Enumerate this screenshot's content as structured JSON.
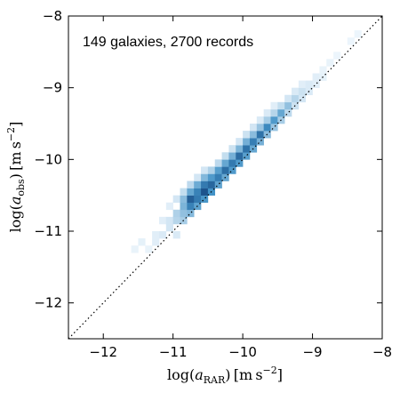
{
  "chart_data": {
    "type": "heatmap",
    "annotation": "149 galaxies, 2700 records",
    "xlim": [
      -12.5,
      -8
    ],
    "ylim": [
      -12.5,
      -8
    ],
    "xticks": [
      -12,
      -11,
      -10,
      -9,
      -8
    ],
    "yticks": [
      -12,
      -11,
      -10,
      -9,
      -8
    ],
    "xtick_labels": [
      "−12",
      "−11",
      "−10",
      "−9",
      "−8"
    ],
    "ytick_labels": [
      "−12",
      "−11",
      "−10",
      "−9",
      "−8"
    ],
    "xlabel": {
      "prefix": "log(",
      "var": "a",
      "sub": "RAR",
      "suffix": ") [m s",
      "sup": "−2",
      "end": "]"
    },
    "ylabel": {
      "prefix": "log(",
      "var": "a",
      "sub": "obs",
      "suffix": ") [m s",
      "sup": "−2",
      "end": "]"
    },
    "reference_line": {
      "style": "dotted",
      "from": [
        -12.5,
        -12.5
      ],
      "to": [
        -8,
        -8
      ]
    },
    "bin_size": 0.1,
    "color_low": "#f7fbff",
    "color_high": "#08306b",
    "cells": [
      [
        -11.6,
        -11.3,
        0.04
      ],
      [
        -11.5,
        -11.2,
        0.05
      ],
      [
        -11.4,
        -11.3,
        0.04
      ],
      [
        -11.3,
        -11.2,
        0.06
      ],
      [
        -11.3,
        -11.1,
        0.06
      ],
      [
        -11.2,
        -11.1,
        0.08
      ],
      [
        -11.2,
        -10.9,
        0.06
      ],
      [
        -11.1,
        -11.0,
        0.1
      ],
      [
        -11.1,
        -10.9,
        0.1
      ],
      [
        -11.1,
        -10.7,
        0.06
      ],
      [
        -11.0,
        -11.1,
        0.08
      ],
      [
        -11.0,
        -10.9,
        0.18
      ],
      [
        -11.0,
        -10.8,
        0.2
      ],
      [
        -11.0,
        -10.6,
        0.1
      ],
      [
        -10.9,
        -10.9,
        0.22
      ],
      [
        -10.9,
        -10.8,
        0.28
      ],
      [
        -10.9,
        -10.7,
        0.34
      ],
      [
        -10.9,
        -10.6,
        0.3
      ],
      [
        -10.9,
        -10.5,
        0.14
      ],
      [
        -10.8,
        -10.8,
        0.32
      ],
      [
        -10.8,
        -10.7,
        0.58
      ],
      [
        -10.8,
        -10.6,
        0.76
      ],
      [
        -10.8,
        -10.5,
        0.4
      ],
      [
        -10.8,
        -10.4,
        0.16
      ],
      [
        -10.7,
        -10.7,
        0.42
      ],
      [
        -10.7,
        -10.6,
        0.62
      ],
      [
        -10.7,
        -10.5,
        0.58
      ],
      [
        -10.7,
        -10.4,
        0.38
      ],
      [
        -10.7,
        -10.3,
        0.1
      ],
      [
        -10.6,
        -10.6,
        0.48
      ],
      [
        -10.6,
        -10.5,
        0.82
      ],
      [
        -10.6,
        -10.4,
        0.62
      ],
      [
        -10.6,
        -10.3,
        0.32
      ],
      [
        -10.6,
        -10.2,
        0.1
      ],
      [
        -10.5,
        -10.5,
        0.5
      ],
      [
        -10.5,
        -10.4,
        0.72
      ],
      [
        -10.5,
        -10.3,
        0.46
      ],
      [
        -10.5,
        -10.2,
        0.2
      ],
      [
        -10.4,
        -10.4,
        0.42
      ],
      [
        -10.4,
        -10.3,
        0.6
      ],
      [
        -10.4,
        -10.2,
        0.44
      ],
      [
        -10.4,
        -10.1,
        0.16
      ],
      [
        -10.3,
        -10.3,
        0.4
      ],
      [
        -10.3,
        -10.2,
        0.68
      ],
      [
        -10.3,
        -10.1,
        0.4
      ],
      [
        -10.3,
        -10.0,
        0.14
      ],
      [
        -10.2,
        -10.2,
        0.46
      ],
      [
        -10.2,
        -10.1,
        0.62
      ],
      [
        -10.2,
        -10.0,
        0.36
      ],
      [
        -10.2,
        -9.9,
        0.12
      ],
      [
        -10.1,
        -10.1,
        0.46
      ],
      [
        -10.1,
        -10.0,
        0.7
      ],
      [
        -10.1,
        -9.9,
        0.34
      ],
      [
        -10.1,
        -9.8,
        0.1
      ],
      [
        -10.0,
        -10.0,
        0.44
      ],
      [
        -10.0,
        -9.9,
        0.66
      ],
      [
        -10.0,
        -9.8,
        0.36
      ],
      [
        -10.0,
        -9.7,
        0.12
      ],
      [
        -9.9,
        -9.9,
        0.4
      ],
      [
        -9.9,
        -9.8,
        0.6
      ],
      [
        -9.9,
        -9.7,
        0.3
      ],
      [
        -9.9,
        -9.6,
        0.1
      ],
      [
        -9.8,
        -9.8,
        0.36
      ],
      [
        -9.8,
        -9.7,
        0.66
      ],
      [
        -9.8,
        -9.6,
        0.26
      ],
      [
        -9.8,
        -9.5,
        0.08
      ],
      [
        -9.7,
        -9.7,
        0.3
      ],
      [
        -9.7,
        -9.6,
        0.54
      ],
      [
        -9.7,
        -9.5,
        0.22
      ],
      [
        -9.7,
        -9.4,
        0.08
      ],
      [
        -9.6,
        -9.6,
        0.26
      ],
      [
        -9.6,
        -9.5,
        0.46
      ],
      [
        -9.6,
        -9.4,
        0.18
      ],
      [
        -9.6,
        -9.3,
        0.06
      ],
      [
        -9.5,
        -9.5,
        0.22
      ],
      [
        -9.5,
        -9.4,
        0.4
      ],
      [
        -9.5,
        -9.3,
        0.14
      ],
      [
        -9.4,
        -9.4,
        0.16
      ],
      [
        -9.4,
        -9.3,
        0.28
      ],
      [
        -9.4,
        -9.2,
        0.1
      ],
      [
        -9.3,
        -9.3,
        0.12
      ],
      [
        -9.3,
        -9.2,
        0.18
      ],
      [
        -9.3,
        -9.1,
        0.08
      ],
      [
        -9.2,
        -9.2,
        0.1
      ],
      [
        -9.2,
        -9.1,
        0.12
      ],
      [
        -9.2,
        -9.0,
        0.06
      ],
      [
        -9.1,
        -9.1,
        0.08
      ],
      [
        -9.1,
        -9.0,
        0.08
      ],
      [
        -9.0,
        -9.0,
        0.06
      ],
      [
        -9.0,
        -8.9,
        0.06
      ],
      [
        -8.9,
        -8.9,
        0.05
      ],
      [
        -8.9,
        -8.8,
        0.04
      ],
      [
        -8.8,
        -8.7,
        0.04
      ],
      [
        -8.7,
        -8.6,
        0.03
      ],
      [
        -8.5,
        -8.4,
        0.03
      ],
      [
        -8.4,
        -8.3,
        0.03
      ]
    ]
  }
}
